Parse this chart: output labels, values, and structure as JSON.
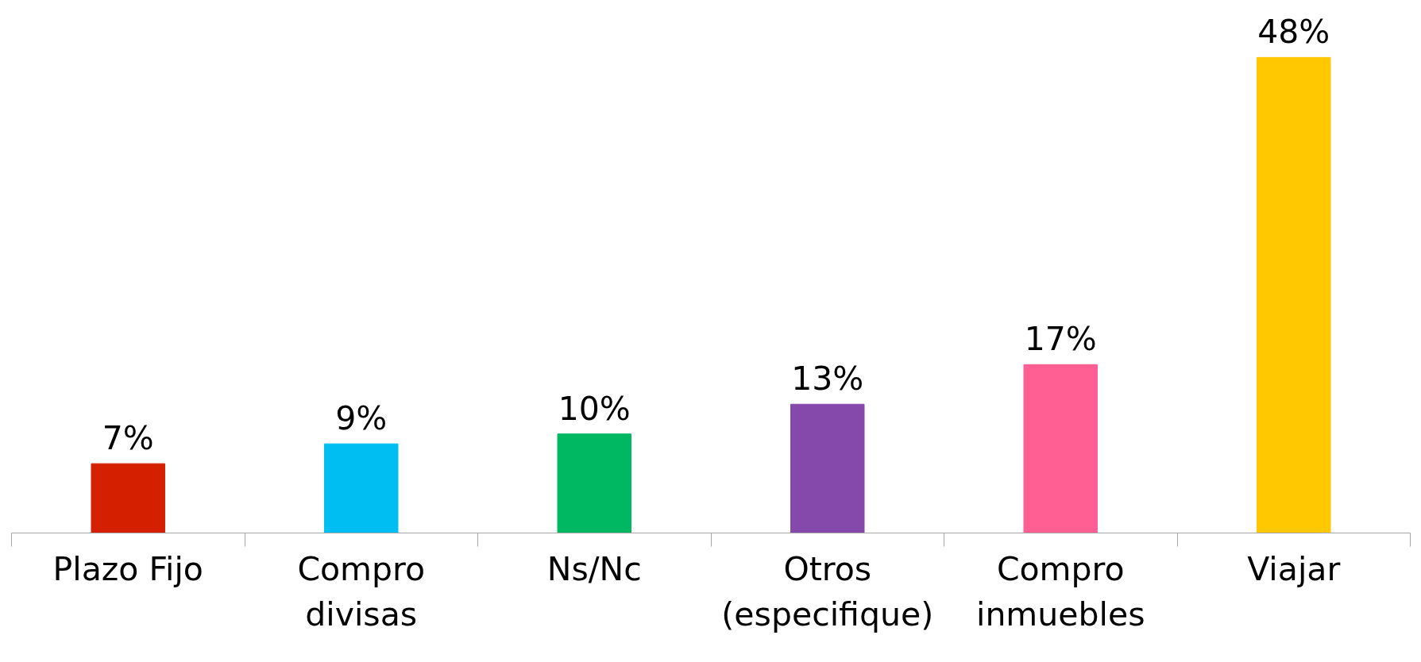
{
  "chart_data": {
    "type": "bar",
    "categories": [
      "Plazo Fijo",
      "Compro divisas",
      "Ns/Nc",
      "Otros (especifique)",
      "Compro inmuebles",
      "Viajar"
    ],
    "values": [
      7,
      9,
      10,
      13,
      17,
      48
    ],
    "value_labels": [
      "7%",
      "9%",
      "10%",
      "13%",
      "17%",
      "48%"
    ],
    "colors": [
      "#d42000",
      "#00bef2",
      "#00b862",
      "#8549ab",
      "#ff5f92",
      "#ffc800"
    ],
    "grid": false
  }
}
